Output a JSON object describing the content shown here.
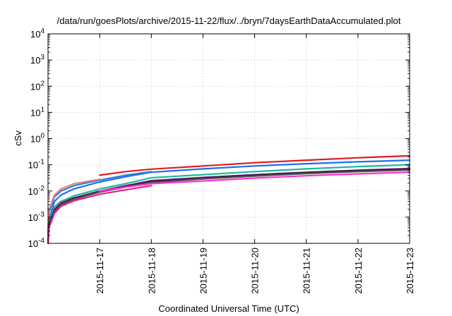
{
  "chart_data": {
    "type": "line",
    "title": "/data/run/goesPlots/archive/2015-11-22/flux/../bryn/7daysEarthDataAccumulated.plot",
    "xlabel": "Coordinated Universal Time (UTC)",
    "ylabel": "cSv",
    "x_scale": "time",
    "y_scale": "log",
    "xlim": [
      "2015-11-16",
      "2015-11-23"
    ],
    "ylim": [
      0.0001,
      10000
    ],
    "grid": true,
    "legend": "none",
    "x_ticks": [
      "2015-11-17",
      "2015-11-18",
      "2015-11-19",
      "2015-11-20",
      "2015-11-21",
      "2015-11-22",
      "2015-11-23"
    ],
    "y_ticks": [
      {
        "value": 0.0001,
        "base": "10",
        "exp": "-4"
      },
      {
        "value": 0.001,
        "base": "10",
        "exp": "-3"
      },
      {
        "value": 0.01,
        "base": "10",
        "exp": "-2"
      },
      {
        "value": 0.1,
        "base": "10",
        "exp": "-1"
      },
      {
        "value": 1,
        "base": "10",
        "exp": "0"
      },
      {
        "value": 10,
        "base": "10",
        "exp": "1"
      },
      {
        "value": 100,
        "base": "10",
        "exp": "2"
      },
      {
        "value": 1000,
        "base": "10",
        "exp": "3"
      },
      {
        "value": 10000,
        "base": "10",
        "exp": "4"
      }
    ],
    "series": [
      {
        "color": "#e41a1c",
        "x": [
          "2015-11-17 00:00",
          "2015-11-17 12:00",
          "2015-11-18 00:00",
          "2015-11-19 00:00",
          "2015-11-20 00:00",
          "2015-11-21 00:00",
          "2015-11-22 00:00",
          "2015-11-23 00:00"
        ],
        "y": [
          0.04,
          0.055,
          0.068,
          0.09,
          0.12,
          0.15,
          0.185,
          0.22
        ]
      },
      {
        "color": "#1e6ff0",
        "x": [
          "2015-11-16 00:00",
          "2015-11-16 00:30",
          "2015-11-16 03:00",
          "2015-11-16 06:00",
          "2015-11-16 12:00",
          "2015-11-17 00:00",
          "2015-11-17 12:00",
          "2015-11-18 00:00",
          "2015-11-19 00:00",
          "2015-11-20 00:00",
          "2015-11-21 00:00",
          "2015-11-22 00:00",
          "2015-11-23 00:00"
        ],
        "y": [
          0.0001,
          0.0008,
          0.004,
          0.007,
          0.012,
          0.022,
          0.035,
          0.052,
          0.07,
          0.09,
          0.11,
          0.13,
          0.15
        ]
      },
      {
        "color": "#2a7fd4",
        "x": [
          "2015-11-16 00:00",
          "2015-11-16 00:30",
          "2015-11-16 03:00",
          "2015-11-16 06:00",
          "2015-11-16 12:00",
          "2015-11-17 00:00",
          "2015-11-17 12:00",
          "2015-11-18 00:00"
        ],
        "y": [
          0.0002,
          0.0015,
          0.006,
          0.01,
          0.016,
          0.026,
          0.04,
          0.055
        ]
      },
      {
        "color": "#f08080",
        "x": [
          "2015-11-16 00:00",
          "2015-11-16 00:30",
          "2015-11-16 03:00",
          "2015-11-16 06:00",
          "2015-11-16 12:00",
          "2015-11-17 00:00"
        ],
        "y": [
          0.0003,
          0.002,
          0.007,
          0.012,
          0.019,
          0.028
        ]
      },
      {
        "color": "#1abc9c",
        "x": [
          "2015-11-16 00:00",
          "2015-11-16 00:30",
          "2015-11-16 03:00",
          "2015-11-16 06:00",
          "2015-11-16 12:00",
          "2015-11-17 00:00",
          "2015-11-17 12:00",
          "2015-11-18 00:00",
          "2015-11-19 00:00",
          "2015-11-20 00:00",
          "2015-11-21 00:00",
          "2015-11-22 00:00",
          "2015-11-23 00:00"
        ],
        "y": [
          0.0001,
          0.0006,
          0.0025,
          0.004,
          0.0065,
          0.012,
          0.019,
          0.032,
          0.042,
          0.055,
          0.07,
          0.085,
          0.1
        ]
      },
      {
        "color": "#8e24aa",
        "x": [
          "2015-11-16 00:00",
          "2015-11-16 00:30",
          "2015-11-16 03:00",
          "2015-11-16 06:00",
          "2015-11-16 12:00",
          "2015-11-17 00:00",
          "2015-11-17 12:00",
          "2015-11-18 00:00",
          "2015-11-19 00:00",
          "2015-11-20 00:00",
          "2015-11-21 00:00",
          "2015-11-22 00:00",
          "2015-11-23 00:00"
        ],
        "y": [
          0.0001,
          0.0005,
          0.002,
          0.0035,
          0.0055,
          0.01,
          0.016,
          0.025,
          0.033,
          0.042,
          0.052,
          0.062,
          0.072
        ]
      },
      {
        "color": "#222222",
        "x": [
          "2015-11-16 00:00",
          "2015-11-16 00:30",
          "2015-11-16 03:00",
          "2015-11-16 06:00",
          "2015-11-16 12:00",
          "2015-11-17 00:00",
          "2015-11-17 12:00",
          "2015-11-18 00:00",
          "2015-11-19 00:00",
          "2015-11-20 00:00",
          "2015-11-21 00:00",
          "2015-11-22 00:00",
          "2015-11-23 00:00"
        ],
        "y": [
          0.0001,
          0.0005,
          0.0018,
          0.0032,
          0.0052,
          0.0095,
          0.015,
          0.023,
          0.031,
          0.04,
          0.05,
          0.06,
          0.068
        ]
      },
      {
        "color": "#555555",
        "x": [
          "2015-11-16 00:00",
          "2015-11-16 00:30",
          "2015-11-16 03:00",
          "2015-11-16 06:00",
          "2015-11-16 12:00",
          "2015-11-17 00:00",
          "2015-11-17 12:00",
          "2015-11-18 00:00",
          "2015-11-19 00:00",
          "2015-11-20 00:00",
          "2015-11-21 00:00",
          "2015-11-22 00:00",
          "2015-11-23 00:00"
        ],
        "y": [
          0.0001,
          0.0004,
          0.0016,
          0.003,
          0.0048,
          0.009,
          0.014,
          0.021,
          0.029,
          0.037,
          0.046,
          0.055,
          0.063
        ]
      },
      {
        "color": "#e91e8c",
        "x": [
          "2015-11-16 00:00",
          "2015-11-16 00:30",
          "2015-11-16 03:00",
          "2015-11-16 06:00",
          "2015-11-16 12:00",
          "2015-11-17 00:00",
          "2015-11-17 12:00",
          "2015-11-18 00:00"
        ],
        "y": [
          0.0001,
          0.0004,
          0.0014,
          0.0026,
          0.0042,
          0.0075,
          0.011,
          0.016
        ]
      },
      {
        "color": "#ff33cc",
        "x": [
          "2015-11-17 00:00",
          "2015-11-17 12:00",
          "2015-11-18 00:00",
          "2015-11-19 00:00",
          "2015-11-20 00:00",
          "2015-11-21 00:00",
          "2015-11-22 00:00",
          "2015-11-23 00:00"
        ],
        "y": [
          0.01,
          0.014,
          0.019,
          0.024,
          0.031,
          0.038,
          0.045,
          0.052
        ]
      }
    ]
  }
}
